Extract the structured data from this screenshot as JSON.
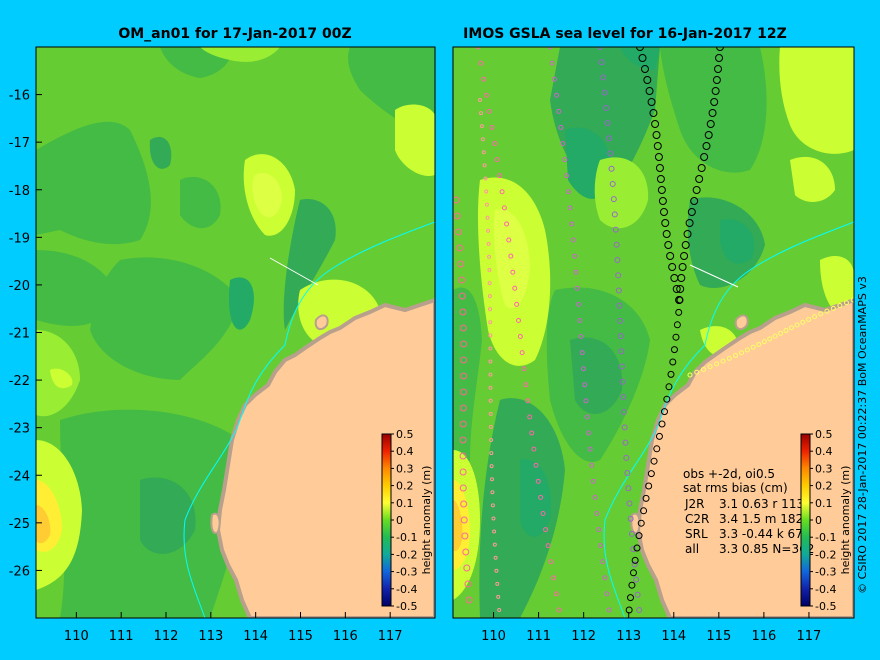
{
  "chart_data": [
    {
      "type": "heatmap",
      "title": "OM_an01 for 17-Jan-2017 00Z",
      "x_ticks": [
        "110",
        "111",
        "112",
        "113",
        "114",
        "115",
        "116",
        "117"
      ],
      "y_ticks": [
        "-16",
        "-17",
        "-18",
        "-19",
        "-20",
        "-21",
        "-22",
        "-23",
        "-24",
        "-25",
        "-26"
      ],
      "xlim": [
        109.1,
        118.0
      ],
      "ylim": [
        -27.0,
        -15.0
      ],
      "colorbar": {
        "label": "height anomaly (m)",
        "ticks": [
          "0.5",
          "0.4",
          "0.3",
          "0.2",
          "0.1",
          "0",
          "-0.1",
          "-0.2",
          "-0.3",
          "-0.4",
          "-0.5"
        ],
        "range": [
          -0.5,
          0.5
        ]
      }
    },
    {
      "type": "heatmap",
      "title": "IMOS GSLA sea level  for 16-Jan-2017 12Z",
      "x_ticks": [
        "110",
        "111",
        "112",
        "113",
        "114",
        "115",
        "116",
        "117"
      ],
      "y_ticks": [],
      "xlim": [
        109.1,
        118.0
      ],
      "ylim": [
        -27.0,
        -15.0
      ],
      "legend_text": {
        "line1": "obs +-2d, oi0.5",
        "line2": "sat rms bias (cm)",
        "rows": [
          {
            "sat": "J2R",
            "values": "3.1  0.63  r 113"
          },
          {
            "sat": "C2R",
            "values": "3.4  1.5  m 182"
          },
          {
            "sat": "SRL",
            "values": "3.3  -0.44  k 67"
          },
          {
            "sat": "all",
            "values": "3.3  0.85  N=362"
          }
        ]
      },
      "colorbar": {
        "label": "height anomaly (m)",
        "ticks": [
          "0.5",
          "0.4",
          "0.3",
          "0.2",
          "0.1",
          "0",
          "-0.1",
          "-0.2",
          "-0.3",
          "-0.4",
          "-0.5"
        ],
        "range": [
          -0.5,
          0.5
        ]
      }
    }
  ],
  "credit": "© CSIRO 2017   28-Jan-2017 00:22:37 BoM OceanMAPS v3",
  "colors": {
    "background": "#00ccff",
    "land": "#ffcc99",
    "coast": "#b8a08c",
    "ocean_mid": "#66cc33",
    "ocean_high": "#ccff33",
    "ocean_low": "#33aa55",
    "ocean_lower": "#22aa66",
    "contour_line": "#00ffff"
  }
}
